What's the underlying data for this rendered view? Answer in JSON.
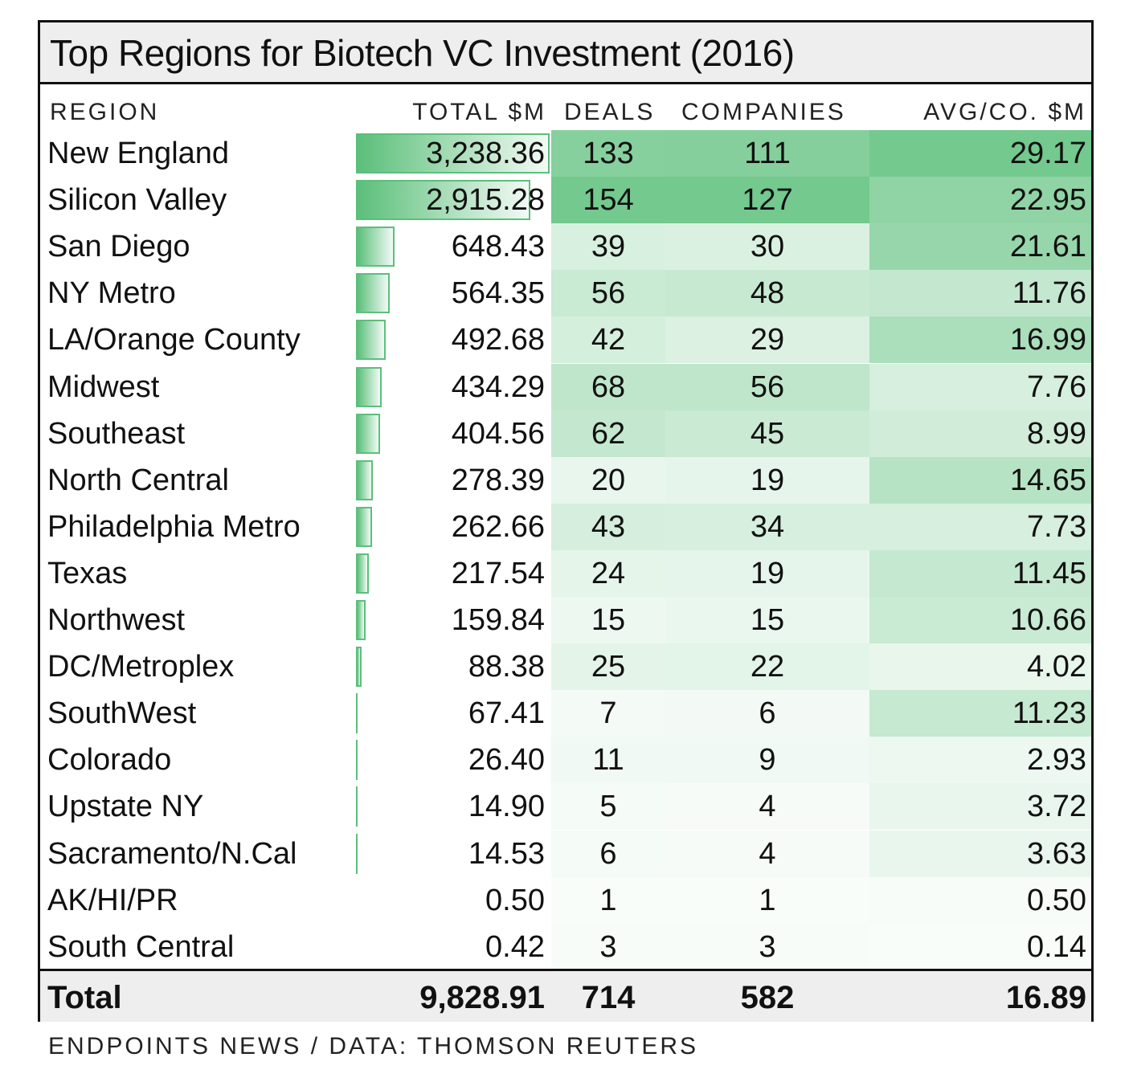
{
  "chart_data": {
    "type": "table",
    "title": "Top Regions for Biotech VC Investment (2016)",
    "columns": [
      "REGION",
      "TOTAL $M",
      "DEALS",
      "COMPANIES",
      "AVG/CO. $M"
    ],
    "rows": [
      {
        "region": "New England",
        "total": "3,238.36",
        "total_num": 3238.36,
        "deals": 133,
        "companies": 111,
        "avg": "29.17",
        "avg_num": 29.17
      },
      {
        "region": "Silicon Valley",
        "total": "2,915.28",
        "total_num": 2915.28,
        "deals": 154,
        "companies": 127,
        "avg": "22.95",
        "avg_num": 22.95
      },
      {
        "region": "San Diego",
        "total": "648.43",
        "total_num": 648.43,
        "deals": 39,
        "companies": 30,
        "avg": "21.61",
        "avg_num": 21.61
      },
      {
        "region": "NY Metro",
        "total": "564.35",
        "total_num": 564.35,
        "deals": 56,
        "companies": 48,
        "avg": "11.76",
        "avg_num": 11.76
      },
      {
        "region": "LA/Orange County",
        "total": "492.68",
        "total_num": 492.68,
        "deals": 42,
        "companies": 29,
        "avg": "16.99",
        "avg_num": 16.99
      },
      {
        "region": "Midwest",
        "total": "434.29",
        "total_num": 434.29,
        "deals": 68,
        "companies": 56,
        "avg": "7.76",
        "avg_num": 7.76
      },
      {
        "region": "Southeast",
        "total": "404.56",
        "total_num": 404.56,
        "deals": 62,
        "companies": 45,
        "avg": "8.99",
        "avg_num": 8.99
      },
      {
        "region": "North Central",
        "total": "278.39",
        "total_num": 278.39,
        "deals": 20,
        "companies": 19,
        "avg": "14.65",
        "avg_num": 14.65
      },
      {
        "region": "Philadelphia Metro",
        "total": "262.66",
        "total_num": 262.66,
        "deals": 43,
        "companies": 34,
        "avg": "7.73",
        "avg_num": 7.73
      },
      {
        "region": "Texas",
        "total": "217.54",
        "total_num": 217.54,
        "deals": 24,
        "companies": 19,
        "avg": "11.45",
        "avg_num": 11.45
      },
      {
        "region": "Northwest",
        "total": "159.84",
        "total_num": 159.84,
        "deals": 15,
        "companies": 15,
        "avg": "10.66",
        "avg_num": 10.66
      },
      {
        "region": "DC/Metroplex",
        "total": "88.38",
        "total_num": 88.38,
        "deals": 25,
        "companies": 22,
        "avg": "4.02",
        "avg_num": 4.02
      },
      {
        "region": "SouthWest",
        "total": "67.41",
        "total_num": 67.41,
        "deals": 7,
        "companies": 6,
        "avg": "11.23",
        "avg_num": 11.23
      },
      {
        "region": "Colorado",
        "total": "26.40",
        "total_num": 26.4,
        "deals": 11,
        "companies": 9,
        "avg": "2.93",
        "avg_num": 2.93
      },
      {
        "region": "Upstate NY",
        "total": "14.90",
        "total_num": 14.9,
        "deals": 5,
        "companies": 4,
        "avg": "3.72",
        "avg_num": 3.72
      },
      {
        "region": "Sacramento/N.Cal",
        "total": "14.53",
        "total_num": 14.53,
        "deals": 6,
        "companies": 4,
        "avg": "3.63",
        "avg_num": 3.63
      },
      {
        "region": "AK/HI/PR",
        "total": "0.50",
        "total_num": 0.5,
        "deals": 1,
        "companies": 1,
        "avg": "0.50",
        "avg_num": 0.5
      },
      {
        "region": "South Central",
        "total": "0.42",
        "total_num": 0.42,
        "deals": 3,
        "companies": 3,
        "avg": "0.14",
        "avg_num": 0.14
      }
    ],
    "totals": {
      "label": "Total",
      "total": "9,828.91",
      "deals": "714",
      "companies": "582",
      "avg": "16.89"
    },
    "source": "ENDPOINTS NEWS / DATA: THOMSON REUTERS"
  },
  "colors": {
    "bar": "#5bbf7a",
    "heat": "#5bbf7a",
    "header_bg": "#eeeeee",
    "border": "#111111"
  }
}
